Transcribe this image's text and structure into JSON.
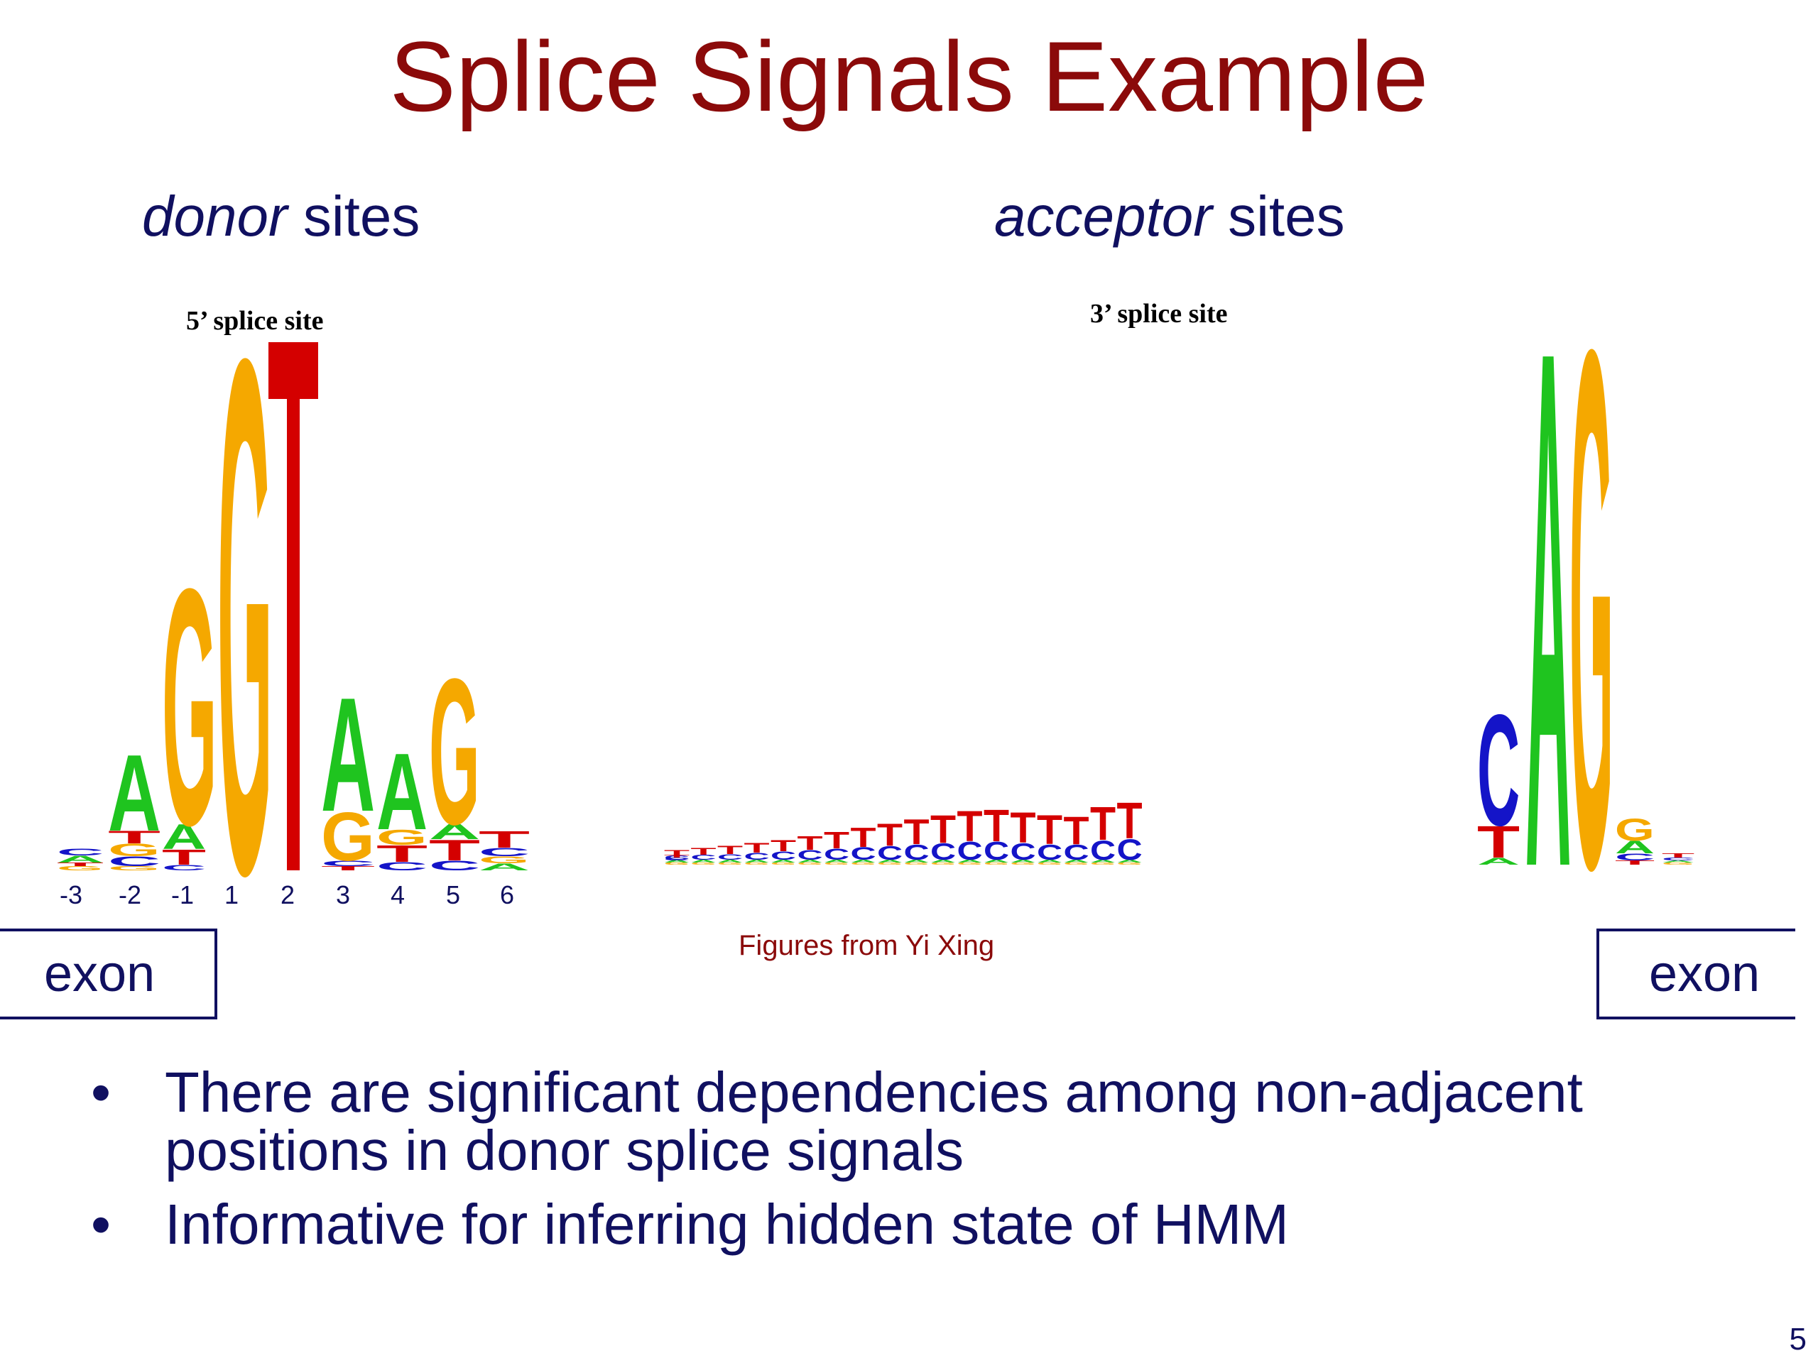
{
  "title": "Splice Signals Example",
  "donor": {
    "heading_em": "donor",
    "heading_rest": " sites",
    "site_label": "5’ splice site",
    "positions": [
      "-3",
      "-2",
      "-1",
      "1",
      "2",
      "3",
      "4",
      "5",
      "6"
    ]
  },
  "acceptor": {
    "heading_em": "acceptor",
    "heading_rest": " sites",
    "site_label": "3’ splice site"
  },
  "exon_left": "exon",
  "exon_right": "exon",
  "credit": "Figures from Yi Xing",
  "bullets": [
    "There are significant dependencies among non-adjacent positions in donor splice signals",
    "Informative for inferring hidden state of HMM"
  ],
  "bullet_symbol": "•",
  "page_number": "5",
  "colors": {
    "title": "#8b0a0a",
    "text": "#101060",
    "A": "#1fc41f",
    "C": "#1414c8",
    "G": "#f5a800",
    "T": "#d40000"
  }
}
